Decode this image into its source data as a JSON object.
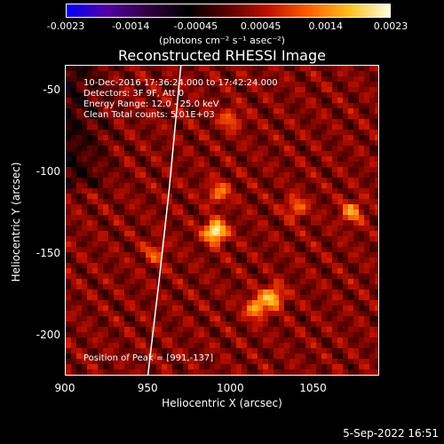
{
  "chart_data": {
    "type": "heatmap",
    "title": "Reconstructed RHESSI Image",
    "xlabel": "Heliocentric X (arcsec)",
    "ylabel": "Heliocentric Y (arcsec)",
    "xlim": [
      900,
      1090
    ],
    "ylim": [
      -225,
      -35
    ],
    "xticks": [
      "900",
      "950",
      "1000",
      "1050"
    ],
    "xtick_values": [
      900,
      950,
      1000,
      1050
    ],
    "yticks": [
      "-50",
      "-100",
      "-150",
      "-200"
    ],
    "ytick_values": [
      -50,
      -100,
      -150,
      -200
    ],
    "colorbar": {
      "ticks": [
        "-0.0023",
        "-0.0014",
        "-0.00045",
        "0.00045",
        "0.0014",
        "0.0023"
      ],
      "range": [
        -0.0023,
        0.0023
      ],
      "unit": "(photons cm⁻² s⁻¹ asec⁻²)",
      "colors": [
        "#0000ff",
        "#5000a0",
        "#300040",
        "#000000",
        "#5a0000",
        "#c01000",
        "#ff6000",
        "#ffc020",
        "#ffffe0"
      ]
    },
    "annotations": [
      "10-Dec-2016 17:36:24.000 to 17:42:24.000",
      "Detectors: 3F 9F, Att 0",
      "Energy Range: 12.0 - 25.0 keV",
      "Clean     Total counts: 5.01E+03"
    ],
    "peak_label": "Position of Peak = [991,-137]",
    "sources": [
      {
        "x": 991,
        "y": -137,
        "value": 0.0023
      },
      {
        "x": 1026,
        "y": -177,
        "value": 0.0016
      },
      {
        "x": 1016,
        "y": -184,
        "value": 0.0015
      },
      {
        "x": 1074,
        "y": -125,
        "value": 0.0013
      },
      {
        "x": 1040,
        "y": -122,
        "value": 0.001
      },
      {
        "x": 993,
        "y": -113,
        "value": 0.0011
      },
      {
        "x": 1000,
        "y": -68,
        "value": 0.0009
      },
      {
        "x": 954,
        "y": -150,
        "value": 0.0008
      }
    ],
    "limb_curve": [
      [
        970,
        -35
      ],
      [
        963,
        -110
      ],
      [
        957,
        -165
      ],
      [
        950,
        -225
      ]
    ]
  },
  "footer": {
    "date": "5-Sep-2022 16:51"
  }
}
